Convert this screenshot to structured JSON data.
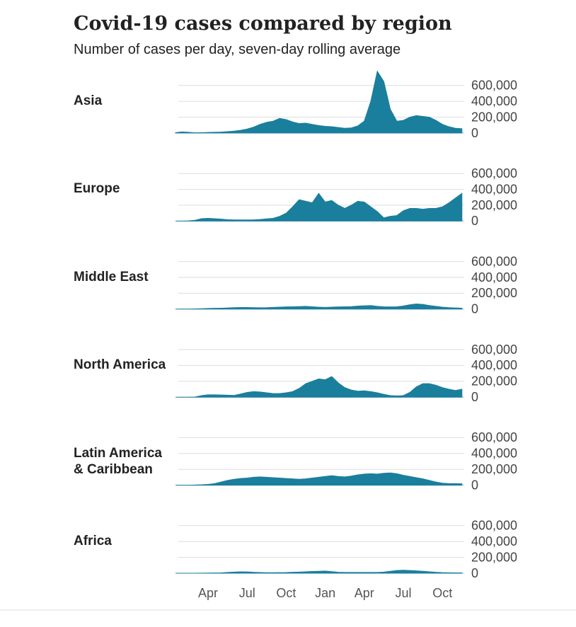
{
  "chart_data": {
    "type": "area",
    "title": "Covid-19 cases compared by region",
    "subtitle": "Number of cases per day, seven-day rolling average",
    "categories": [
      null,
      null,
      null,
      null,
      null,
      "Apr",
      null,
      null,
      null,
      null,
      null,
      "Jul",
      null,
      null,
      null,
      null,
      null,
      "Oct",
      null,
      null,
      null,
      null,
      null,
      "Jan",
      null,
      null,
      null,
      null,
      null,
      "Apr",
      null,
      null,
      null,
      null,
      null,
      "Jul",
      null,
      null,
      null,
      null,
      null,
      "Oct",
      null,
      null,
      null
    ],
    "ylim": [
      0,
      800000
    ],
    "yticks": [
      0,
      {
        "value": 200000,
        "label": "200,000"
      },
      {
        "value": 400000,
        "label": "400,000"
      },
      {
        "value": 600000,
        "label": "600,000"
      }
    ],
    "grid": true,
    "series": [
      {
        "name": "Asia",
        "color": "#1a7f9c",
        "values": [
          5000,
          15000,
          10000,
          3000,
          5000,
          8000,
          10000,
          12000,
          18000,
          25000,
          35000,
          50000,
          75000,
          110000,
          135000,
          150000,
          185000,
          170000,
          140000,
          120000,
          125000,
          110000,
          95000,
          85000,
          80000,
          70000,
          60000,
          65000,
          90000,
          150000,
          400000,
          780000,
          650000,
          300000,
          150000,
          160000,
          200000,
          220000,
          210000,
          200000,
          160000,
          110000,
          80000,
          60000,
          55000
        ]
      },
      {
        "name": "Europe",
        "color": "#1a7f9c",
        "values": [
          0,
          0,
          2000,
          10000,
          30000,
          35000,
          30000,
          25000,
          18000,
          15000,
          15000,
          15000,
          16000,
          20000,
          28000,
          35000,
          60000,
          100000,
          180000,
          270000,
          250000,
          230000,
          350000,
          240000,
          260000,
          200000,
          160000,
          200000,
          250000,
          240000,
          180000,
          120000,
          40000,
          60000,
          70000,
          130000,
          160000,
          160000,
          150000,
          160000,
          160000,
          180000,
          230000,
          290000,
          350000
        ]
      },
      {
        "name": "Middle East",
        "color": "#1a7f9c",
        "values": [
          0,
          0,
          1000,
          3000,
          5000,
          8000,
          10000,
          12000,
          15000,
          18000,
          20000,
          20000,
          18000,
          17000,
          18000,
          22000,
          25000,
          28000,
          30000,
          32000,
          35000,
          30000,
          25000,
          22000,
          25000,
          28000,
          30000,
          32000,
          38000,
          42000,
          45000,
          35000,
          30000,
          28000,
          30000,
          40000,
          55000,
          65000,
          60000,
          45000,
          35000,
          25000,
          18000,
          15000,
          12000
        ]
      },
      {
        "name": "North America",
        "color": "#1a7f9c",
        "values": [
          0,
          0,
          0,
          2000,
          20000,
          30000,
          30000,
          28000,
          25000,
          22000,
          40000,
          60000,
          70000,
          65000,
          55000,
          45000,
          45000,
          55000,
          70000,
          110000,
          170000,
          200000,
          230000,
          220000,
          260000,
          180000,
          120000,
          90000,
          75000,
          80000,
          70000,
          55000,
          35000,
          20000,
          15000,
          20000,
          60000,
          130000,
          170000,
          170000,
          150000,
          120000,
          100000,
          85000,
          100000
        ]
      },
      {
        "name": "Latin America\n& Caribbean",
        "color": "#1a7f9c",
        "values": [
          0,
          0,
          0,
          2000,
          5000,
          10000,
          20000,
          40000,
          60000,
          75000,
          85000,
          90000,
          100000,
          105000,
          100000,
          95000,
          90000,
          85000,
          80000,
          75000,
          80000,
          90000,
          100000,
          110000,
          120000,
          110000,
          105000,
          115000,
          130000,
          140000,
          145000,
          140000,
          150000,
          155000,
          145000,
          125000,
          110000,
          95000,
          80000,
          60000,
          40000,
          25000,
          20000,
          20000,
          18000
        ]
      },
      {
        "name": "Africa",
        "color": "#1a7f9c",
        "values": [
          0,
          0,
          0,
          500,
          1000,
          2000,
          3000,
          5000,
          10000,
          15000,
          18000,
          17000,
          12000,
          9000,
          7000,
          7000,
          8000,
          9000,
          12000,
          15000,
          18000,
          22000,
          25000,
          28000,
          20000,
          12000,
          10000,
          10000,
          10000,
          10000,
          10000,
          10000,
          15000,
          25000,
          35000,
          38000,
          35000,
          30000,
          25000,
          18000,
          12000,
          8000,
          6000,
          5000,
          5000
        ]
      }
    ]
  }
}
